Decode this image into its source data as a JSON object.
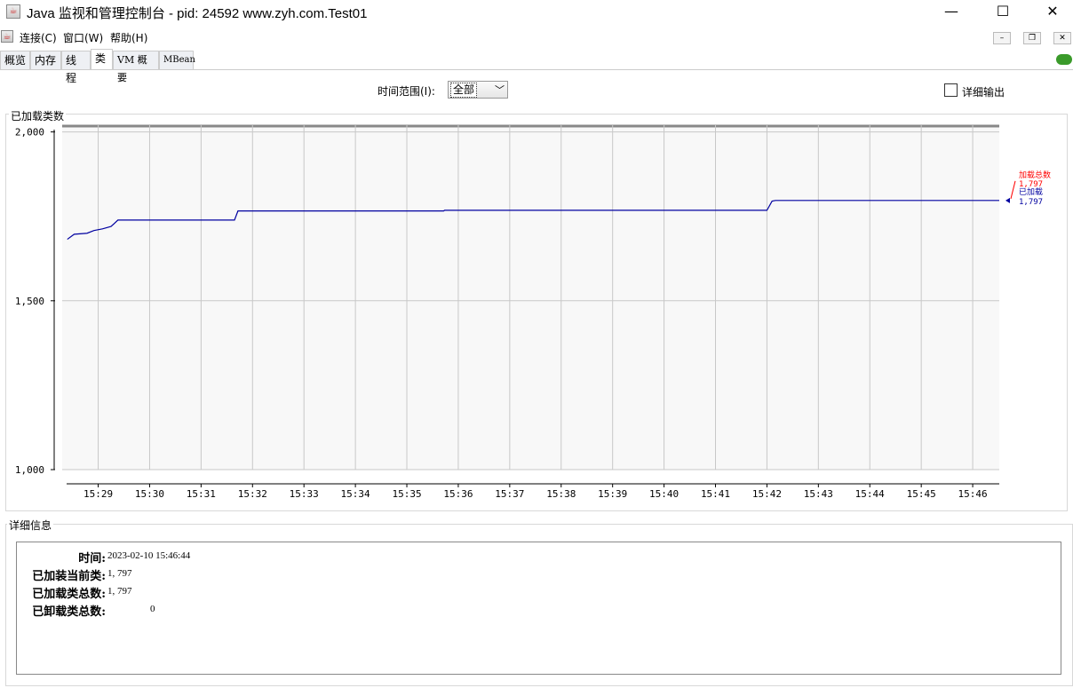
{
  "window": {
    "title": "Java 监视和管理控制台 - pid: 24592 www.zyh.com.Test01",
    "minimize": "—",
    "maximize": "☐",
    "close": "✕"
  },
  "menu": [
    "连接(C)",
    "窗口(W)",
    "帮助(H)"
  ],
  "tabs": [
    {
      "label": "概览"
    },
    {
      "label": "内存"
    },
    {
      "label": "线程"
    },
    {
      "label": "类",
      "selected": true
    },
    {
      "label": "VM 概要"
    },
    {
      "label": "MBean"
    }
  ],
  "toolbar": {
    "time_range_label": "时间范围(I):",
    "time_range_value": "全部",
    "verbose_label": "详细输出",
    "verbose_checked": false
  },
  "chart_panel": {
    "title": "已加载类数"
  },
  "chart_data": {
    "type": "line",
    "ylim": [
      1000,
      2020
    ],
    "yticks": [
      {
        "v": 1000,
        "label": "1,000"
      },
      {
        "v": 1500,
        "label": "1,500"
      },
      {
        "v": 2000,
        "label": "2,000"
      }
    ],
    "xlim": [
      "15:28:18",
      "15:46:31"
    ],
    "xticks": [
      "15:29",
      "15:30",
      "15:31",
      "15:32",
      "15:33",
      "15:34",
      "15:35",
      "15:36",
      "15:37",
      "15:38",
      "15:39",
      "15:40",
      "15:41",
      "15:42",
      "15:43",
      "15:44",
      "15:45",
      "15:46"
    ],
    "grid": true,
    "series": [
      {
        "name": "已加载",
        "color": "#0000a0",
        "points": [
          [
            "15:28:24",
            1682
          ],
          [
            "15:28:32",
            1697
          ],
          [
            "15:28:47",
            1700
          ],
          [
            "15:28:55",
            1708
          ],
          [
            "15:29:05",
            1713
          ],
          [
            "15:29:15",
            1720
          ],
          [
            "15:29:23",
            1739
          ],
          [
            "15:31:39",
            1739
          ],
          [
            "15:31:43",
            1766
          ],
          [
            "15:35:43",
            1766
          ],
          [
            "15:35:44",
            1768
          ],
          [
            "15:42:00",
            1768
          ],
          [
            "15:42:06",
            1795
          ],
          [
            "15:42:10",
            1797
          ],
          [
            "15:46:31",
            1797
          ]
        ]
      },
      {
        "name": "加载总数",
        "color": "#ff0000",
        "points": [
          [
            "15:46:31",
            1797
          ]
        ]
      }
    ],
    "legend": {
      "placement": "right",
      "entries": [
        {
          "name": "加载总数",
          "value": "1,797",
          "color": "#ff0000"
        },
        {
          "name": "已加载",
          "value": "1,797",
          "color": "#0000a0"
        }
      ]
    }
  },
  "details": {
    "title": "详细信息",
    "rows": [
      {
        "key": "时间:",
        "value": "2023-02-10 15:46:44"
      },
      {
        "key": "已加装当前类:",
        "value": "1, 797"
      },
      {
        "key": "已加载类总数:",
        "value": "1, 797"
      },
      {
        "key": "已卸载类总数:",
        "value": "0"
      }
    ]
  },
  "colors": {
    "connected_icon": "#3a9a2a"
  }
}
